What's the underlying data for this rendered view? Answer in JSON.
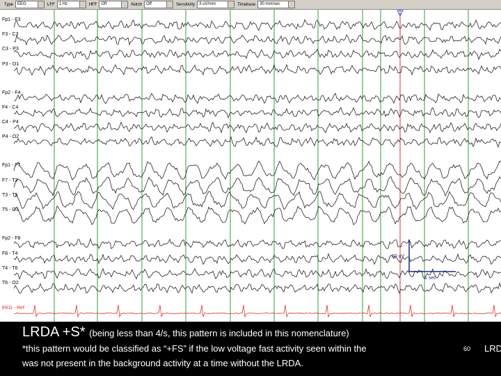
{
  "toolbar": {
    "fields": [
      {
        "label": "Type",
        "value": "EEG"
      },
      {
        "label": "LFF",
        "value": "1 Hz"
      },
      {
        "label": "HFF",
        "value": "Off"
      },
      {
        "label": "Notch",
        "value": "Off"
      },
      {
        "label": "Sensitivity",
        "value": "3 uV/mm"
      },
      {
        "label": "Timebase",
        "value": "30 mm/sec"
      }
    ]
  },
  "channels": [
    "Fp1 - F3",
    "F3 - C3",
    "C3 - P3",
    "P3 - O1",
    "Fp2 - F4",
    "F4 - C4",
    "C4 - P4",
    "P4 - O2",
    "Fp1 - F7",
    "F7 - T3",
    "T3 - T5",
    "T5 - O1",
    "Fp2 - F8",
    "F8 - T4",
    "T4 - T6",
    "T6 - O2",
    "EKG - Ref"
  ],
  "calibration": {
    "amplitude": "60 uV",
    "time": "1 sec"
  },
  "caption": {
    "title": "LRDA +S*",
    "title_note": "(being less than 4/s, this pattern is included in this nomenclature)",
    "line1": "*this pattern would be classified as “+FS” if the low voltage fast activity seen within the",
    "slide_number": "60",
    "overflow": "LRD",
    "line2": "was not present in the background activity at a time without the LRDA."
  }
}
